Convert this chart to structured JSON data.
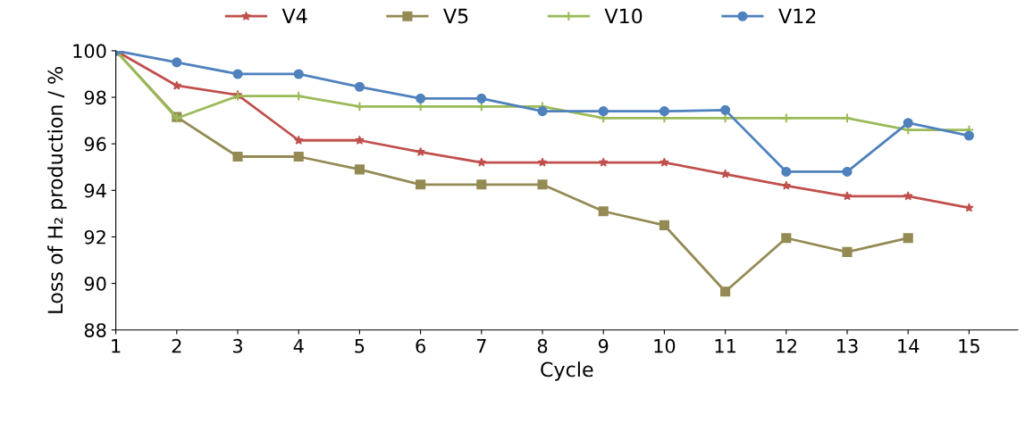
{
  "chart_data": {
    "type": "line",
    "xlabel": "Cycle",
    "ylabel": "Loss of H₂ production / %",
    "x": [
      1,
      2,
      3,
      4,
      5,
      6,
      7,
      8,
      9,
      10,
      11,
      12,
      13,
      14,
      15
    ],
    "xlim": [
      1,
      15.8
    ],
    "xticks": [
      1,
      2,
      3,
      4,
      5,
      6,
      7,
      8,
      9,
      10,
      11,
      12,
      13,
      14,
      15
    ],
    "ylim": [
      88,
      100
    ],
    "yticks": [
      88,
      90,
      92,
      94,
      96,
      98,
      100
    ],
    "grid": false,
    "legend": "top",
    "series": [
      {
        "name": "V4",
        "color": "#c0504d",
        "marker": "star",
        "values": [
          100,
          98.5,
          98.1,
          96.15,
          96.15,
          95.65,
          95.2,
          95.2,
          95.2,
          95.2,
          94.7,
          94.2,
          93.75,
          93.75,
          93.25
        ]
      },
      {
        "name": "V5",
        "color": "#948a54",
        "marker": "square",
        "values": [
          100,
          97.15,
          95.45,
          95.45,
          94.9,
          94.25,
          94.25,
          94.25,
          93.1,
          92.5,
          89.65,
          91.95,
          91.35,
          91.95,
          null
        ]
      },
      {
        "name": "V10",
        "color": "#9bbb59",
        "marker": "cross",
        "values": [
          100,
          97.1,
          98.05,
          98.05,
          97.6,
          97.6,
          97.6,
          97.6,
          97.1,
          97.1,
          97.1,
          97.1,
          97.1,
          96.6,
          96.6
        ]
      },
      {
        "name": "V12",
        "color": "#4f81bd",
        "marker": "circle",
        "values": [
          100,
          99.5,
          99.0,
          99.0,
          98.45,
          97.95,
          97.95,
          97.4,
          97.4,
          97.4,
          97.45,
          94.8,
          94.8,
          96.9,
          96.35
        ]
      }
    ]
  }
}
